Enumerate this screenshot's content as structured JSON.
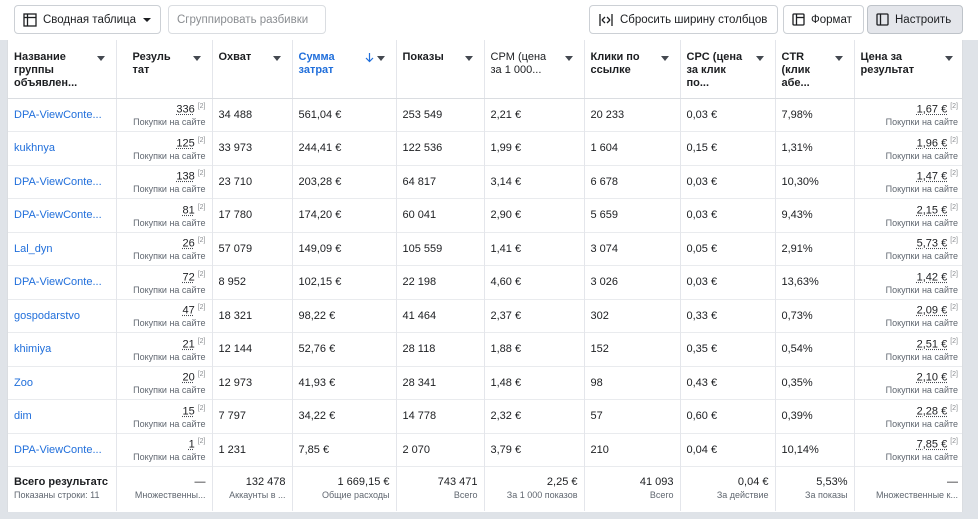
{
  "toolbar": {
    "pivot_label": "Сводная таблица",
    "group_label": "Сгруппировать разбивки",
    "reset_label": "Сбросить ширину столбцов",
    "format_label": "Формат",
    "configure_label": "Настроить"
  },
  "columns": [
    {
      "label": "Название группы объявлен..."
    },
    {
      "label": "Резуль тат"
    },
    {
      "label": "Охват"
    },
    {
      "label": "Сумма затрат",
      "sort_icon": "arrow-down-icon"
    },
    {
      "label": "Показы"
    },
    {
      "label": "CPM (цена за 1 000..."
    },
    {
      "label": "Клики по ссылке"
    },
    {
      "label": "CPC (цена за клик по..."
    },
    {
      "label": "CTR (клик абе..."
    },
    {
      "label": "Цена за результат"
    }
  ],
  "rows": [
    {
      "name": "DPA-ViewConte...",
      "result": "336",
      "result_sup": "[2]",
      "result_sub": "Покупки на сайте",
      "reach": "34 488",
      "spend": "561,04 €",
      "impressions": "253 549",
      "cpm": "2,21 €",
      "clicks": "20 233",
      "cpc": "0,03 €",
      "ctr": "7,98%",
      "cpr": "1,67 €",
      "cpr_sup": "[2]",
      "cpr_sub": "Покупки на сайте"
    },
    {
      "name": "kukhnya",
      "result": "125",
      "result_sup": "[2]",
      "result_sub": "Покупки на сайте",
      "reach": "33 973",
      "spend": "244,41 €",
      "impressions": "122 536",
      "cpm": "1,99 €",
      "clicks": "1 604",
      "cpc": "0,15 €",
      "ctr": "1,31%",
      "cpr": "1,96 €",
      "cpr_sup": "[2]",
      "cpr_sub": "Покупки на сайте"
    },
    {
      "name": "DPA-ViewConte...",
      "result": "138",
      "result_sup": "[2]",
      "result_sub": "Покупки на сайте",
      "reach": "23 710",
      "spend": "203,28 €",
      "impressions": "64 817",
      "cpm": "3,14 €",
      "clicks": "6 678",
      "cpc": "0,03 €",
      "ctr": "10,30%",
      "cpr": "1,47 €",
      "cpr_sup": "[2]",
      "cpr_sub": "Покупки на сайте"
    },
    {
      "name": "DPA-ViewConte...",
      "result": "81",
      "result_sup": "[2]",
      "result_sub": "Покупки на сайте",
      "reach": "17 780",
      "spend": "174,20 €",
      "impressions": "60 041",
      "cpm": "2,90 €",
      "clicks": "5 659",
      "cpc": "0,03 €",
      "ctr": "9,43%",
      "cpr": "2,15 €",
      "cpr_sup": "[2]",
      "cpr_sub": "Покупки на сайте"
    },
    {
      "name": "Lal_dyn",
      "result": "26",
      "result_sup": "[2]",
      "result_sub": "Покупки на сайте",
      "reach": "57 079",
      "spend": "149,09 €",
      "impressions": "105 559",
      "cpm": "1,41 €",
      "clicks": "3 074",
      "cpc": "0,05 €",
      "ctr": "2,91%",
      "cpr": "5,73 €",
      "cpr_sup": "[2]",
      "cpr_sub": "Покупки на сайте"
    },
    {
      "name": "DPA-ViewConte...",
      "result": "72",
      "result_sup": "[2]",
      "result_sub": "Покупки на сайте",
      "reach": "8 952",
      "spend": "102,15 €",
      "impressions": "22 198",
      "cpm": "4,60 €",
      "clicks": "3 026",
      "cpc": "0,03 €",
      "ctr": "13,63%",
      "cpr": "1,42 €",
      "cpr_sup": "[2]",
      "cpr_sub": "Покупки на сайте"
    },
    {
      "name": "gospodarstvo",
      "result": "47",
      "result_sup": "[2]",
      "result_sub": "Покупки на сайте",
      "reach": "18 321",
      "spend": "98,22 €",
      "impressions": "41 464",
      "cpm": "2,37 €",
      "clicks": "302",
      "cpc": "0,33 €",
      "ctr": "0,73%",
      "cpr": "2,09 €",
      "cpr_sup": "[2]",
      "cpr_sub": "Покупки на сайте"
    },
    {
      "name": "khimiya",
      "result": "21",
      "result_sup": "[2]",
      "result_sub": "Покупки на сайте",
      "reach": "12 144",
      "spend": "52,76 €",
      "impressions": "28 118",
      "cpm": "1,88 €",
      "clicks": "152",
      "cpc": "0,35 €",
      "ctr": "0,54%",
      "cpr": "2,51 €",
      "cpr_sup": "[2]",
      "cpr_sub": "Покупки на сайте"
    },
    {
      "name": "Zoo",
      "result": "20",
      "result_sup": "[2]",
      "result_sub": "Покупки на сайте",
      "reach": "12 973",
      "spend": "41,93 €",
      "impressions": "28 341",
      "cpm": "1,48 €",
      "clicks": "98",
      "cpc": "0,43 €",
      "ctr": "0,35%",
      "cpr": "2,10 €",
      "cpr_sup": "[2]",
      "cpr_sub": "Покупки на сайте"
    },
    {
      "name": "dim",
      "result": "15",
      "result_sup": "[2]",
      "result_sub": "Покупки на сайте",
      "reach": "7 797",
      "spend": "34,22 €",
      "impressions": "14 778",
      "cpm": "2,32 €",
      "clicks": "57",
      "cpc": "0,60 €",
      "ctr": "0,39%",
      "cpr": "2,28 €",
      "cpr_sup": "[2]",
      "cpr_sub": "Покупки на сайте"
    },
    {
      "name": "DPA-ViewConte...",
      "result": "1",
      "result_sup": "[2]",
      "result_sub": "Покупки на сайте",
      "reach": "1 231",
      "spend": "7,85 €",
      "impressions": "2 070",
      "cpm": "3,79 €",
      "clicks": "210",
      "cpc": "0,04 €",
      "ctr": "10,14%",
      "cpr": "7,85 €",
      "cpr_sup": "[2]",
      "cpr_sub": "Покупки на сайте"
    }
  ],
  "totals": {
    "title": "Всего результатс",
    "shown_rows": "Показаны строки: 11",
    "result": "—",
    "result_sub": "Множественны...",
    "reach": "132 478",
    "reach_sub": "Аккаунты в ...",
    "spend": "1 669,15 €",
    "spend_sub": "Общие расходы",
    "impressions": "743 471",
    "impressions_sub": "Всего",
    "cpm": "2,25 €",
    "cpm_sub": "За 1 000 показов",
    "clicks": "41 093",
    "clicks_sub": "Всего",
    "cpc": "0,04 €",
    "cpc_sub": "За действие",
    "ctr": "5,53%",
    "ctr_sub": "За показы",
    "cpr": "—",
    "cpr_sub": "Множественные к..."
  }
}
